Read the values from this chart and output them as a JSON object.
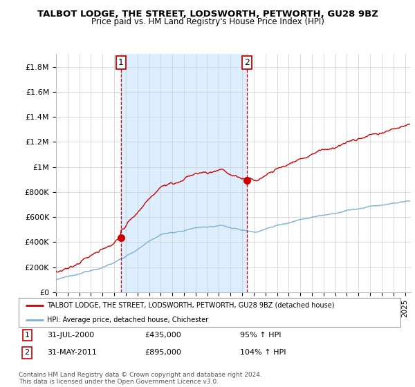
{
  "title": "TALBOT LODGE, THE STREET, LODSWORTH, PETWORTH, GU28 9BZ",
  "subtitle": "Price paid vs. HM Land Registry's House Price Index (HPI)",
  "ylim": [
    0,
    1900000
  ],
  "yticks": [
    0,
    200000,
    400000,
    600000,
    800000,
    1000000,
    1200000,
    1400000,
    1600000,
    1800000
  ],
  "ytick_labels": [
    "£0",
    "£200K",
    "£400K",
    "£600K",
    "£800K",
    "£1M",
    "£1.2M",
    "£1.4M",
    "£1.6M",
    "£1.8M"
  ],
  "xlim_start": 1995.0,
  "xlim_end": 2025.5,
  "sale1_x": 2000.58,
  "sale1_y": 435000,
  "sale2_x": 2011.42,
  "sale2_y": 895000,
  "hpi_color": "#7bafd4",
  "price_color": "#cc0000",
  "shade_color": "#ddeeff",
  "legend_label_red": "TALBOT LODGE, THE STREET, LODSWORTH, PETWORTH, GU28 9BZ (detached house)",
  "legend_label_blue": "HPI: Average price, detached house, Chichester",
  "sale1_date": "31-JUL-2000",
  "sale1_price": "£435,000",
  "sale1_hpi": "95% ↑ HPI",
  "sale2_date": "31-MAY-2011",
  "sale2_price": "£895,000",
  "sale2_hpi": "104% ↑ HPI",
  "footer1": "Contains HM Land Registry data © Crown copyright and database right 2024.",
  "footer2": "This data is licensed under the Open Government Licence v3.0."
}
